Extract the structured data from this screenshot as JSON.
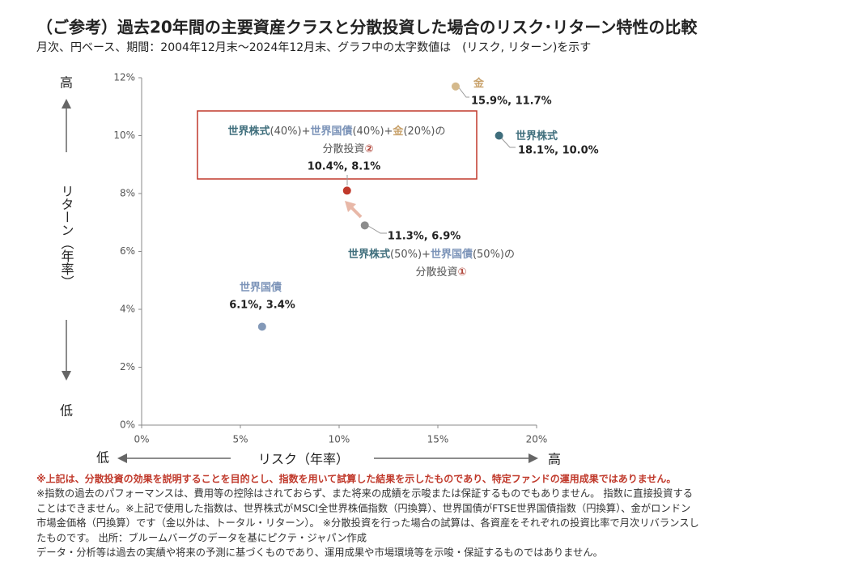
{
  "chart_data": {
    "type": "scatter",
    "title": "（ご参考）過去20年間の主要資産クラスと分散投資した場合のリスク･リターン特性の比較",
    "subtitle": "月次、円ベース、期間：2004年12月末～2024年12月末、グラフ中の太字数値は　(リスク, リターン)を示す",
    "x_label": "リスク（年率）",
    "y_label": "リターン（年率）",
    "x_low": "低",
    "x_high": "高",
    "y_low": "低",
    "y_high": "高",
    "xlim": [
      0,
      20
    ],
    "xticks": [
      {
        "value": 0,
        "label": "0%"
      },
      {
        "value": 5,
        "label": "5%"
      },
      {
        "value": 10,
        "label": "10%"
      },
      {
        "value": 15,
        "label": "15%"
      },
      {
        "value": 20,
        "label": "20%"
      }
    ],
    "ylim": [
      0,
      12
    ],
    "yticks": [
      {
        "value": 0,
        "label": "0%"
      },
      {
        "value": 2,
        "label": "2%"
      },
      {
        "value": 4,
        "label": "4%"
      },
      {
        "value": 6,
        "label": "6%"
      },
      {
        "value": 8,
        "label": "8%"
      },
      {
        "value": 10,
        "label": "10%"
      },
      {
        "value": 12,
        "label": "12%"
      }
    ],
    "series": [
      {
        "label_lines": [
          [
            "金"
          ]
        ],
        "label_colors": [
          [
            "#c8a16a"
          ]
        ],
        "color": "#d4b98c",
        "x": [
          15.9
        ],
        "values": [
          11.7
        ],
        "value_labels": [
          "15.9%, 11.7%"
        ]
      },
      {
        "label_lines": [
          [
            "世界株式"
          ]
        ],
        "label_colors": [
          [
            "#3f6e7c"
          ]
        ],
        "color": "#3f6e7c",
        "x": [
          18.1
        ],
        "values": [
          10.0
        ],
        "value_labels": [
          "18.1%, 10.0%"
        ]
      },
      {
        "label_lines": [
          [
            "世界国債"
          ]
        ],
        "label_colors": [
          [
            "#7b93b8"
          ]
        ],
        "color": "#8399b8",
        "x": [
          6.1
        ],
        "values": [
          3.4
        ],
        "value_labels": [
          "6.1%, 3.4%"
        ]
      },
      {
        "label_lines": [
          [
            "世界株式",
            "(50%)+",
            "世界国債",
            "(50%)の"
          ],
          [
            "分散投資",
            "①"
          ]
        ],
        "label_colors": [
          [
            "#3f6e7c",
            "#555555",
            "#7b93b8",
            "#555555"
          ],
          [
            "#555555",
            "#b0463a"
          ]
        ],
        "color": "#8c8c8c",
        "x": [
          11.3
        ],
        "values": [
          6.9
        ],
        "value_labels": [
          "11.3%, 6.9%"
        ]
      },
      {
        "label_lines": [
          [
            "世界株式",
            "(40%)+",
            "世界国債",
            "(40%)+",
            "金",
            "(20%)の"
          ],
          [
            "分散投資",
            "②"
          ]
        ],
        "label_colors": [
          [
            "#3f6e7c",
            "#555555",
            "#7b93b8",
            "#555555",
            "#c8a16a",
            "#555555"
          ],
          [
            "#555555",
            "#b0463a"
          ]
        ],
        "color": "#c0392b",
        "x": [
          10.4
        ],
        "values": [
          8.1
        ],
        "value_labels": [
          "10.4%, 8.1%"
        ]
      }
    ],
    "notes": [
      "※上記は、分散投資の効果を説明することを目的とし、指数を用いて試算した結果を示したものであり、特定ファンドの運用成果ではありません。",
      "※指数の過去のパフォーマンスは、費用等の控除はされておらず、また将来の成績を示唆または保証するものでもありません。 指数に直接投資する",
      "ことはできません。※上記で使用した指数は、世界株式がMSCI全世界株価指数（円換算）、世界国債がFTSE世界国債指数（円換算）、金がロンドン",
      "市場金価格（円換算）です（金以外は、トータル・リターン）。 ※分散投資を行った場合の試算は、各資産をそれぞれの投資比率で月次リバランスし",
      "たものです。 出所：ブルームバーグのデータを基にピクテ・ジャパン作成",
      "データ・分析等は過去の実績や将来の予測に基づくものであり、運用成果や市場環境等を示唆・保証するものではありません。"
    ]
  }
}
